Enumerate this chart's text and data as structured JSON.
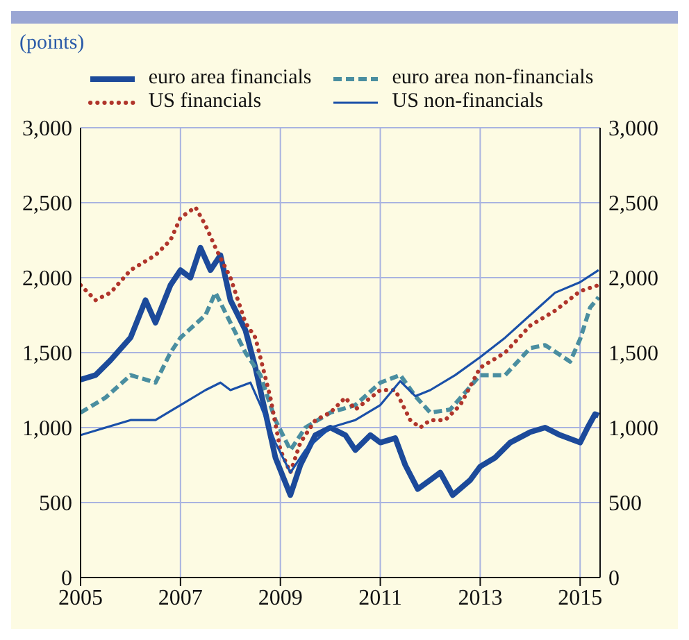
{
  "chart_data": {
    "type": "line",
    "subtitle": "(points)",
    "xlim": [
      2005,
      2015.4
    ],
    "xticks": [
      2005,
      2007,
      2009,
      2011,
      2013,
      2015
    ],
    "ylim": [
      0,
      3000
    ],
    "yticks": [
      0,
      500,
      {
        "value": 1000,
        "label": "1,000"
      },
      {
        "value": 1500,
        "label": "1,500"
      },
      {
        "value": 2000,
        "label": "2,000"
      },
      {
        "value": 2500,
        "label": "2,500"
      },
      {
        "value": 3000,
        "label": "3,000"
      }
    ],
    "y2lim": [
      0,
      3000
    ],
    "y2ticks": [
      0,
      500,
      {
        "value": 1000,
        "label": "1,000"
      },
      {
        "value": 1500,
        "label": "1,500"
      },
      {
        "value": 2000,
        "label": "2,000"
      },
      {
        "value": 2500,
        "label": "2,500"
      },
      {
        "value": 3000,
        "label": "3,000"
      }
    ],
    "grid": true,
    "legend": "top",
    "marker": "none",
    "series": [
      {
        "name": "euro area financials",
        "color": "#1c4a9a",
        "line_style": "solid",
        "x": [
          2005,
          2005.3,
          2005.6,
          2006,
          2006.3,
          2006.5,
          2006.8,
          2007,
          2007.2,
          2007.4,
          2007.6,
          2007.8,
          2008,
          2008.3,
          2008.5,
          2008.7,
          2008.9,
          2009.2,
          2009.4,
          2009.7,
          2010,
          2010.3,
          2010.5,
          2010.8,
          2011,
          2011.3,
          2011.5,
          2011.75,
          2012,
          2012.2,
          2012.45,
          2012.8,
          2013,
          2013.3,
          2013.6,
          2014,
          2014.3,
          2014.6,
          2015,
          2015.15,
          2015.3,
          2015.37
        ],
        "values": [
          1320,
          1350,
          1450,
          1600,
          1850,
          1700,
          1950,
          2050,
          2000,
          2200,
          2050,
          2150,
          1850,
          1650,
          1400,
          1100,
          800,
          550,
          750,
          950,
          1000,
          950,
          850,
          950,
          900,
          930,
          750,
          590,
          650,
          700,
          550,
          650,
          740,
          800,
          900,
          970,
          1000,
          950,
          900,
          1000,
          1090,
          1080
        ]
      },
      {
        "name": "euro area non-financials",
        "color": "#4a8ea0",
        "line_style": "dashed",
        "x": [
          2005,
          2005.5,
          2006,
          2006.5,
          2006.8,
          2007,
          2007.5,
          2007.7,
          2008,
          2008.3,
          2008.6,
          2008.9,
          2009.2,
          2009.5,
          2010,
          2010.5,
          2011,
          2011.4,
          2011.7,
          2012,
          2012.4,
          2013,
          2013.5,
          2014,
          2014.3,
          2014.8,
          2015,
          2015.2,
          2015.37
        ],
        "values": [
          1100,
          1200,
          1350,
          1300,
          1500,
          1600,
          1750,
          1900,
          1700,
          1500,
          1350,
          1050,
          850,
          1000,
          1100,
          1150,
          1300,
          1350,
          1210,
          1100,
          1120,
          1350,
          1350,
          1530,
          1550,
          1440,
          1590,
          1800,
          1870
        ]
      },
      {
        "name": "US financials",
        "color": "#b0352b",
        "line_style": "dotted",
        "x": [
          2005,
          2005.3,
          2005.6,
          2006,
          2006.5,
          2006.8,
          2007,
          2007.3,
          2007.5,
          2007.7,
          2008,
          2008.3,
          2008.5,
          2008.8,
          2009,
          2009.2,
          2009.4,
          2009.7,
          2010,
          2010.3,
          2010.5,
          2011,
          2011.3,
          2011.6,
          2011.8,
          2012,
          2012.3,
          2012.6,
          2013,
          2013.5,
          2014,
          2014.5,
          2015,
          2015.37
        ],
        "values": [
          1950,
          1850,
          1900,
          2050,
          2150,
          2250,
          2400,
          2470,
          2350,
          2200,
          2000,
          1700,
          1600,
          1200,
          850,
          700,
          900,
          1050,
          1100,
          1200,
          1120,
          1250,
          1250,
          1050,
          1000,
          1050,
          1050,
          1150,
          1400,
          1500,
          1680,
          1780,
          1910,
          1950
        ]
      },
      {
        "name": "US non-financials",
        "color": "#1a50a8",
        "line_style": "solid",
        "x": [
          2005,
          2005.5,
          2006,
          2006.5,
          2007,
          2007.5,
          2007.8,
          2008,
          2008.4,
          2008.6,
          2008.9,
          2009.2,
          2009.5,
          2010,
          2010.5,
          2011,
          2011.4,
          2011.7,
          2012,
          2012.5,
          2013,
          2013.5,
          2014,
          2014.5,
          2015,
          2015.37
        ],
        "values": [
          950,
          1000,
          1050,
          1050,
          1150,
          1250,
          1300,
          1250,
          1300,
          1150,
          900,
          700,
          850,
          1000,
          1050,
          1150,
          1310,
          1210,
          1250,
          1350,
          1470,
          1600,
          1750,
          1900,
          1970,
          2050
        ]
      }
    ]
  }
}
